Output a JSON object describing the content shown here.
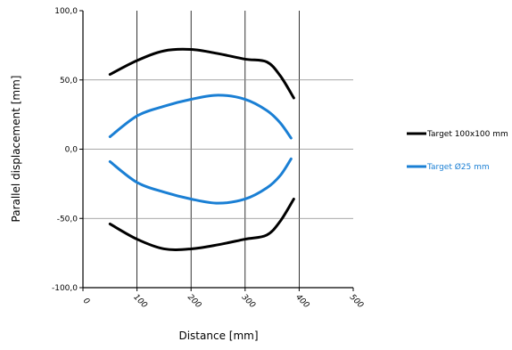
{
  "chart_data": {
    "type": "line",
    "title": "",
    "xlabel": "Distance  [mm]",
    "ylabel": "Parallel displacement [mm]",
    "xlim": [
      0,
      500
    ],
    "ylim": [
      -100,
      100
    ],
    "x_ticks": [
      "0",
      "100",
      "200",
      "300",
      "400",
      "500"
    ],
    "y_ticks": [
      "100,0",
      "50,0",
      "0,0",
      "-50,0",
      "-100,0"
    ],
    "grid": {
      "vertical": true,
      "horizontal": true
    },
    "legend_position": "right",
    "series": [
      {
        "name": "Target 100x100 mm",
        "color": "#000000",
        "x": [
          50,
          100,
          150,
          200,
          250,
          300,
          340,
          365,
          390
        ],
        "y": [
          54,
          64,
          71,
          72,
          69,
          65,
          63,
          53,
          37
        ]
      },
      {
        "name": "",
        "color": "#000000",
        "x": [
          50,
          100,
          150,
          200,
          250,
          300,
          340,
          365,
          390
        ],
        "y": [
          -54,
          -65,
          -72,
          -72,
          -69,
          -65,
          -62,
          -52,
          -36
        ]
      },
      {
        "name": "Target Ø25 mm",
        "color": "#1a7fd4",
        "x": [
          50,
          100,
          150,
          200,
          250,
          300,
          340,
          365,
          385
        ],
        "y": [
          9,
          24,
          31,
          36,
          39,
          36,
          28,
          19,
          8
        ]
      },
      {
        "name": "",
        "color": "#1a7fd4",
        "x": [
          50,
          100,
          150,
          200,
          250,
          300,
          340,
          365,
          385
        ],
        "y": [
          -9,
          -24,
          -31,
          -36,
          -39,
          -36,
          -28,
          -19,
          -7
        ]
      }
    ],
    "legend": [
      {
        "label": "Target 100x100 mm",
        "color": "#000000"
      },
      {
        "label": "Target Ø25 mm",
        "color": "#1a7fd4"
      }
    ]
  }
}
